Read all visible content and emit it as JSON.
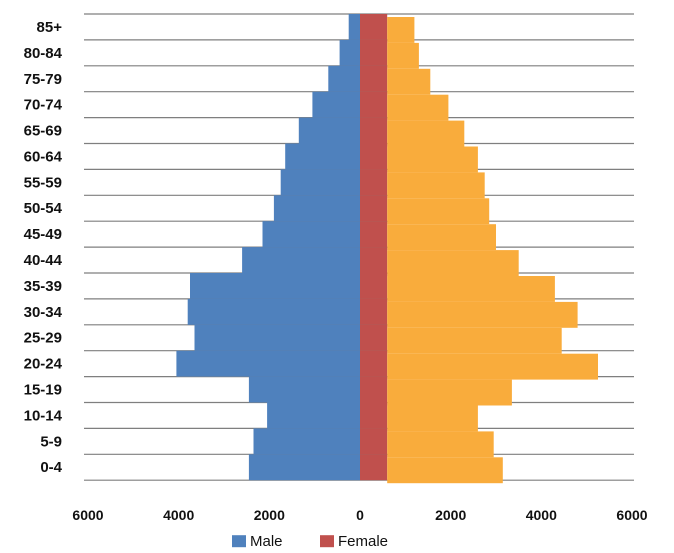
{
  "chart_data": {
    "type": "bar",
    "orientation": "horizontal",
    "title": "",
    "xlabel": "",
    "ylabel": "",
    "categories": [
      "0-4",
      "5-9",
      "10-14",
      "15-19",
      "20-24",
      "25-29",
      "30-34",
      "35-39",
      "40-44",
      "45-49",
      "50-54",
      "55-59",
      "60-64",
      "65-69",
      "70-74",
      "75-79",
      "80-84",
      "85+"
    ],
    "tick_labels_y": [
      "0-4",
      "5-9",
      "10-14",
      "15-19",
      "20-24",
      "25-29",
      "30-34",
      "35-39",
      "40-44",
      "45-49",
      "50-54",
      "55-59",
      "60-64",
      "65-69",
      "70-74",
      "75-79",
      "80-84",
      "85+"
    ],
    "tick_labels_x": [
      "6000",
      "4000",
      "2000",
      "0",
      "2000",
      "4000",
      "6000"
    ],
    "xlim": [
      -6000,
      6000
    ],
    "grid": "horizontal",
    "legend_position": "bottom",
    "series": [
      {
        "name": "Male",
        "color": "#4f81bd",
        "values": [
          2450,
          2350,
          2050,
          2450,
          4050,
          3650,
          3800,
          3750,
          2600,
          2150,
          1900,
          1750,
          1650,
          1350,
          1050,
          700,
          450,
          250
        ]
      },
      {
        "name": "Female",
        "color": "#c0504d",
        "values": [
          600,
          600,
          600,
          600,
          600,
          600,
          600,
          600,
          600,
          600,
          600,
          600,
          600,
          600,
          600,
          600,
          600,
          600
        ]
      },
      {
        "name": "",
        "color": "#f9ac3c",
        "values": [
          3150,
          2950,
          2600,
          3350,
          5250,
          4450,
          4800,
          4300,
          3500,
          3000,
          2850,
          2750,
          2600,
          2300,
          1950,
          1550,
          1300,
          1200
        ]
      }
    ],
    "legend": [
      {
        "label": "Male",
        "color": "#4f81bd"
      },
      {
        "label": "Female",
        "color": "#c0504d"
      },
      {
        "label": "",
        "color": "#f9ac3c"
      }
    ]
  }
}
